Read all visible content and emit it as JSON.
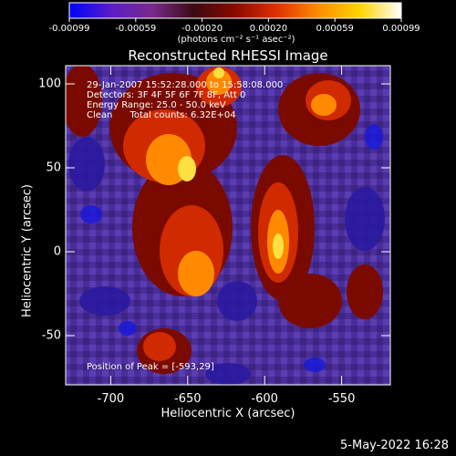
{
  "colorbar": {
    "tick_labels": [
      "-0.00099",
      "-0.00059",
      "-0.00020",
      "0.00020",
      "0.00059",
      "0.00099"
    ],
    "units": "(photons cm⁻² s⁻¹ asec⁻²)",
    "colors": [
      "#0000ff",
      "#5a1cc8",
      "#7a2a8a",
      "#3a0a12",
      "#8a0a00",
      "#e03000",
      "#ff8c00",
      "#ffd400",
      "#ffffff"
    ]
  },
  "plot": {
    "title": "Reconstructed RHESSI Image",
    "annotations": [
      "29-Jan-2007 15:52:28.000 to 15:58:08.000",
      "Detectors: 3F 4F 5F 6F 7F 8F, Att 0",
      "Energy Range: 25.0 - 50.0 keV",
      "Clean      Total counts: 6.32E+04"
    ],
    "peak_label": "Position of Peak = [-593,29]",
    "xlabel": "Heliocentric X (arcsec)",
    "ylabel": "Heliocentric Y (arcsec)",
    "xticks": [
      "-700",
      "-650",
      "-600",
      "-550"
    ],
    "yticks": [
      "100",
      "50",
      "0",
      "-50"
    ],
    "footer": "5-May-2022 16:28"
  }
}
